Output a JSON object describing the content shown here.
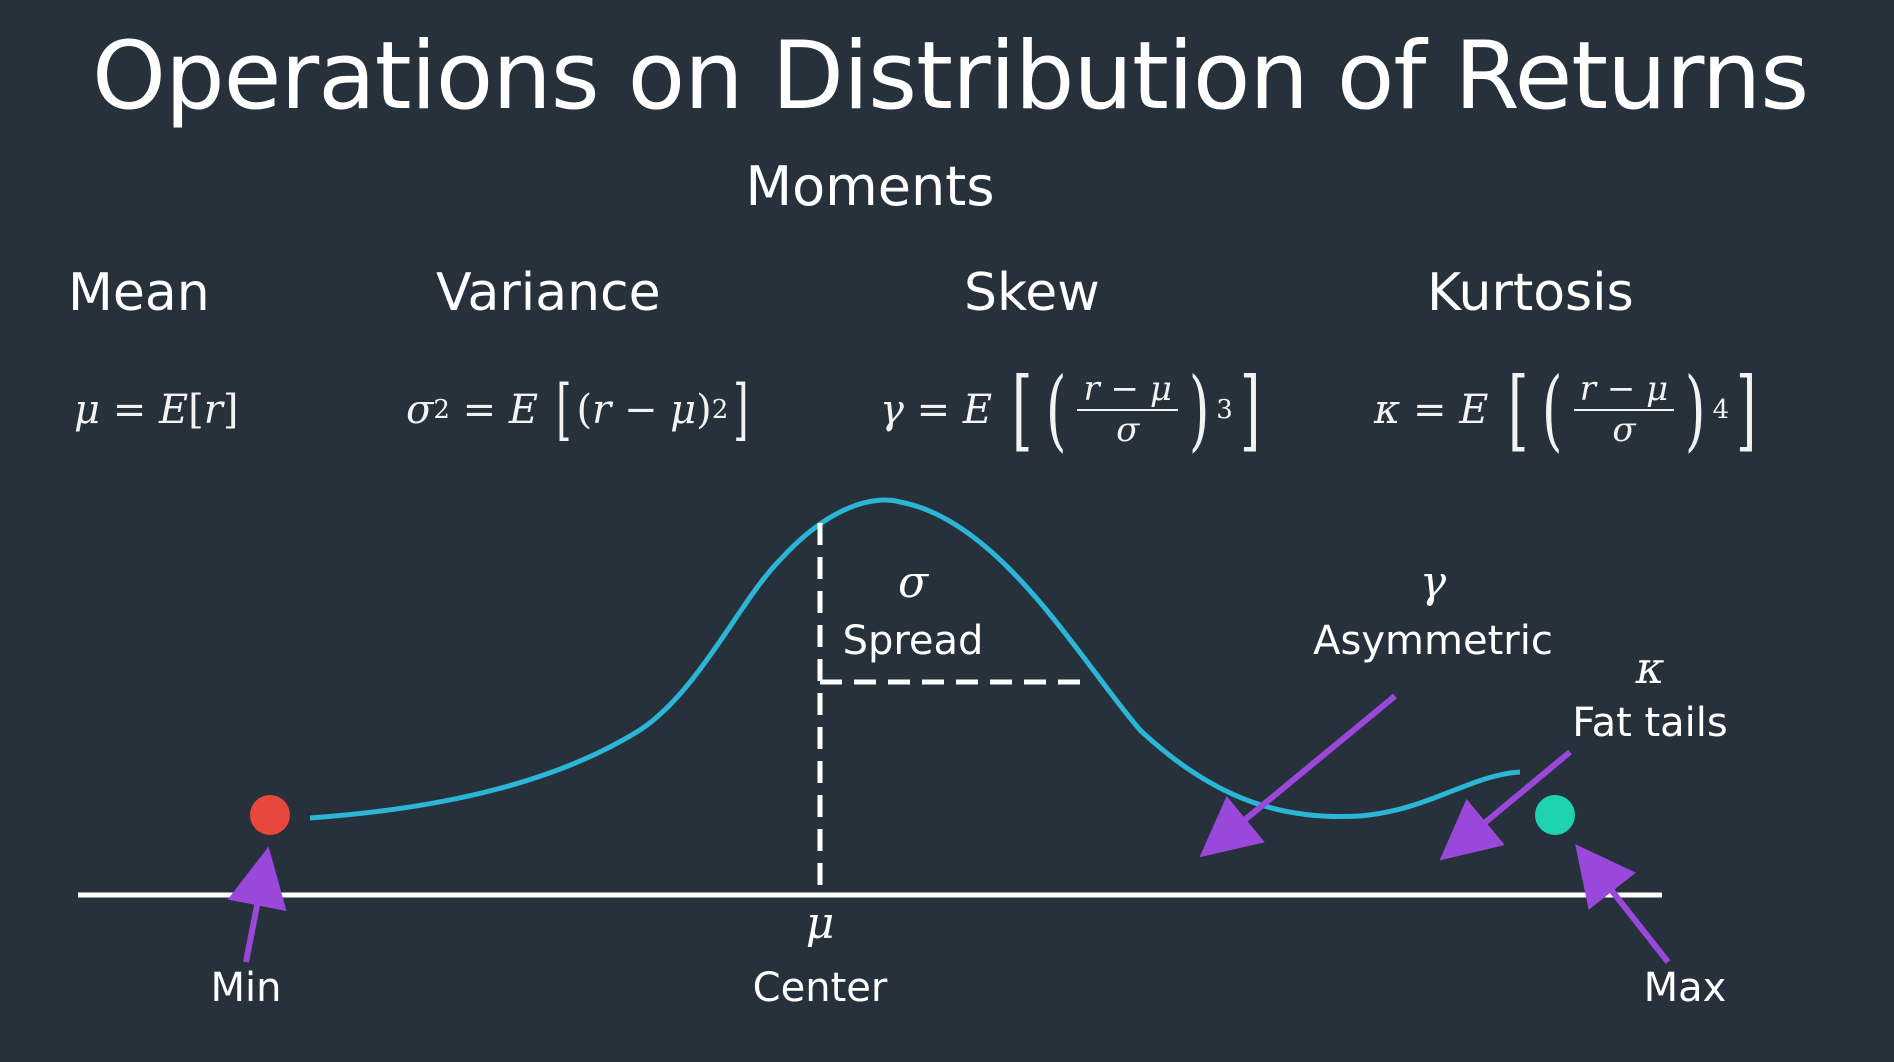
{
  "slide": {
    "title": "Operations on Distribution of Returns",
    "section_title": "Moments"
  },
  "moments": [
    {
      "name": "Mean"
    },
    {
      "name": "Variance"
    },
    {
      "name": "Skew"
    },
    {
      "name": "Kurtosis"
    }
  ],
  "formulas": {
    "mean": {
      "lhs": "μ",
      "eq": "=",
      "E": "E",
      "open": "[",
      "r": "r",
      "close": "]"
    },
    "variance": {
      "sigma": "σ",
      "sq": "2",
      "eq": "=",
      "E": "E",
      "r": "r",
      "minus": "−",
      "mu": "μ",
      "pow": "2"
    },
    "skew": {
      "lhs": "γ",
      "eq": "=",
      "E": "E",
      "num": "r − μ",
      "den": "σ",
      "pow": "3"
    },
    "kurtosis": {
      "lhs": "κ",
      "eq": "=",
      "E": "E",
      "num": "r − μ",
      "den": "σ",
      "pow": "4"
    }
  },
  "diagram": {
    "labels": {
      "sigma_symbol": "σ",
      "spread": "Spread",
      "gamma_symbol": "γ",
      "asymmetric": "Asymmetric",
      "kappa_symbol": "κ",
      "fat_tails": "Fat tails",
      "mu_symbol": "μ",
      "center": "Center",
      "min": "Min",
      "max": "Max"
    },
    "colors": {
      "background": "#27313b",
      "curve": "#2bb5d6",
      "min_dot": "#e8473b",
      "max_dot": "#20d3b0",
      "arrows": "#9a47dc",
      "axis": "#ffffff"
    }
  }
}
